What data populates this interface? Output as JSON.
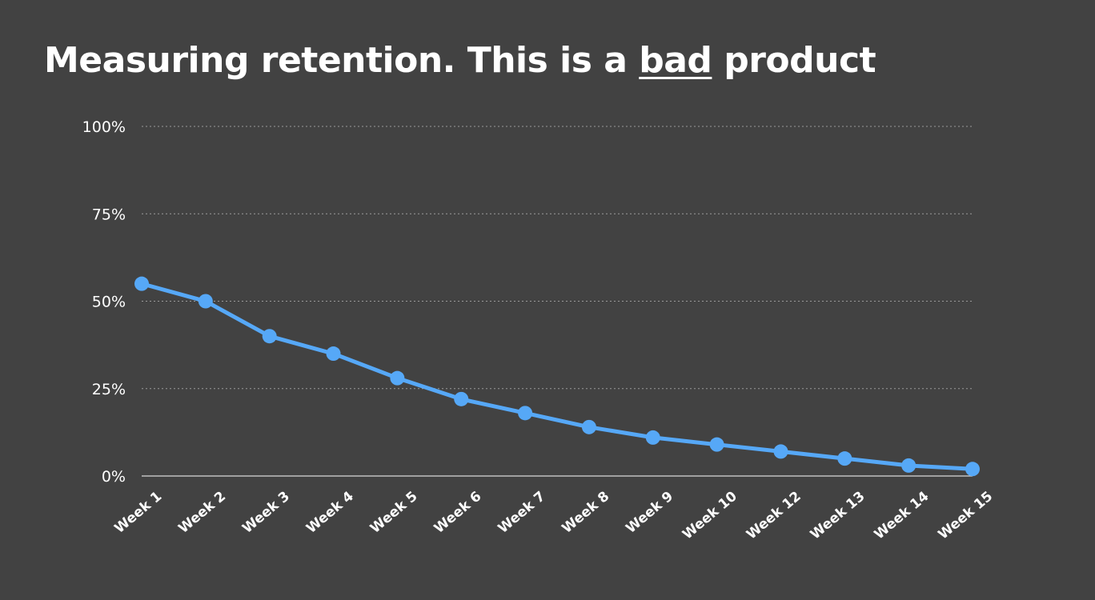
{
  "title": {
    "before": "Measuring retention. This is a ",
    "emphasis": "bad",
    "after": " product"
  },
  "chart_data": {
    "type": "line",
    "categories": [
      "Week 1",
      "Week 2",
      "Week 3",
      "Week 4",
      "Week 5",
      "Week 6",
      "Week 7",
      "Week 8",
      "Week 9",
      "Week 10",
      "Week 12",
      "Week 13",
      "Week 14",
      "Week 15"
    ],
    "series": [
      {
        "values": [
          55,
          50,
          40,
          35,
          28,
          22,
          18,
          14,
          11,
          9,
          7,
          5,
          3,
          2
        ],
        "color": "#56a8f7"
      }
    ],
    "y_ticks": [
      "0%",
      "25%",
      "50%",
      "75%",
      "100%"
    ],
    "ylim": [
      0,
      100
    ],
    "grid": true,
    "background": "#424242",
    "grid_color": "#9a9a9a",
    "text_color": "#ffffff"
  }
}
